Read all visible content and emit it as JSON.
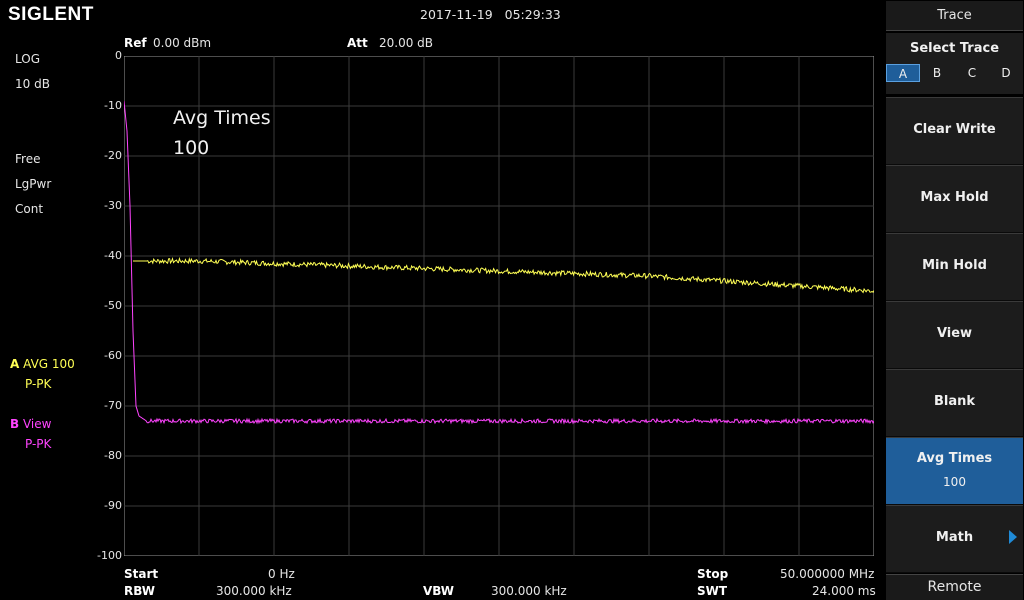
{
  "header": {
    "brand": "SIGLENT",
    "datetime": "2017-11-19   05:29:33"
  },
  "top_params": {
    "ref_label": "Ref",
    "ref_value": "0.00 dBm",
    "att_label": "Att",
    "att_value": "20.00 dB"
  },
  "left_info": {
    "scale_type": "LOG",
    "scale_div": "10 dB",
    "trig": "Free",
    "avg_type": "LgPwr",
    "sweep": "Cont"
  },
  "traces": {
    "a_letter": "A",
    "a_mode": "AVG 100",
    "a_det": "P-PK",
    "b_letter": "B",
    "b_mode": "View",
    "b_det": "P-PK",
    "a_color": "#ffff55",
    "b_color": "#ff44ff"
  },
  "overlay": {
    "line1": "Avg Times",
    "line2": "100"
  },
  "y_axis": {
    "ticks": [
      "0",
      "-10",
      "-20",
      "-30",
      "-40",
      "-50",
      "-60",
      "-70",
      "-80",
      "-90",
      "-100"
    ]
  },
  "bottom": {
    "start_label": "Start",
    "start_value": "0 Hz",
    "stop_label": "Stop",
    "stop_value": "50.000000 MHz",
    "rbw_label": "RBW",
    "rbw_value": "300.000 kHz",
    "vbw_label": "VBW",
    "vbw_value": "300.000 kHz",
    "swt_label": "SWT",
    "swt_value": "24.000 ms"
  },
  "menu": {
    "title": "Trace",
    "select_trace": "Select Trace",
    "trace_options": [
      "A",
      "B",
      "C",
      "D"
    ],
    "selected_trace": "A",
    "clear_write": "Clear Write",
    "max_hold": "Max Hold",
    "min_hold": "Min Hold",
    "view": "View",
    "blank": "Blank",
    "avg_times": "Avg Times",
    "avg_times_value": "100",
    "math": "Math",
    "remote": "Remote",
    "accent_color": "#1f5e9a"
  },
  "chart_data": {
    "type": "line",
    "xlabel": "",
    "ylabel": "",
    "x_range": [
      0,
      50
    ],
    "ylim": [
      -100,
      0
    ],
    "grid": true,
    "series": [
      {
        "name": "A AVG 100",
        "color": "#ffff55",
        "x": [
          0.6,
          1,
          2,
          5,
          10,
          15,
          20,
          25,
          30,
          35,
          40,
          45,
          50
        ],
        "y": [
          -41,
          -41,
          -41,
          -41,
          -41.5,
          -42,
          -42.5,
          -43,
          -43.5,
          -44,
          -45,
          -46,
          -47
        ]
      },
      {
        "name": "B View",
        "color": "#ff44ff",
        "x": [
          0,
          0.2,
          0.4,
          0.6,
          0.8,
          1,
          1.5,
          2,
          5,
          10,
          20,
          30,
          40,
          50
        ],
        "y": [
          -9,
          -15,
          -30,
          -55,
          -70,
          -72,
          -73,
          -73,
          -73,
          -73,
          -73,
          -73,
          -73,
          -73
        ]
      }
    ]
  }
}
